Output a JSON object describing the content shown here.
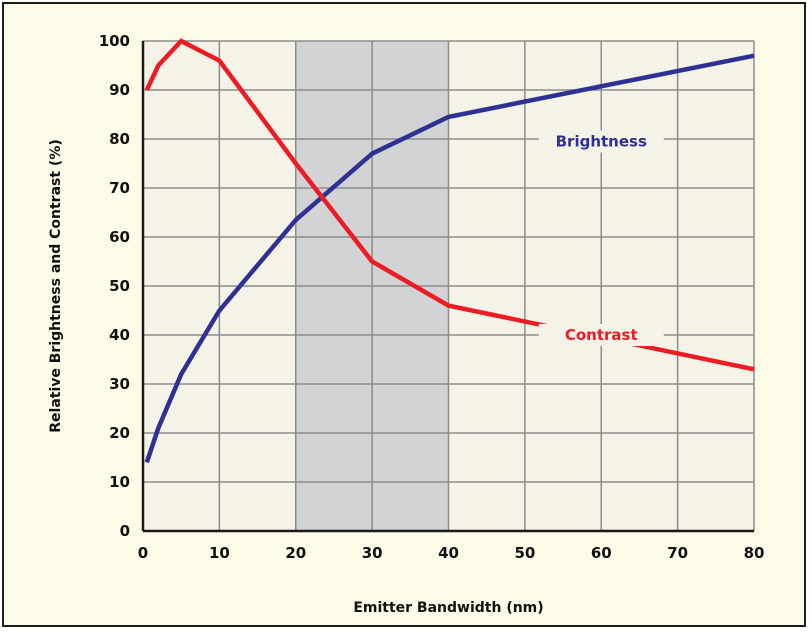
{
  "chart_data": {
    "type": "line",
    "title": "",
    "xlabel": "Emitter Bandwidth (nm)",
    "ylabel": "Relative Brightness and Contrast (%)",
    "xlim": [
      0,
      80
    ],
    "ylim": [
      0,
      100
    ],
    "x_ticks": [
      0,
      10,
      20,
      30,
      40,
      50,
      60,
      70,
      80
    ],
    "y_ticks": [
      0,
      10,
      20,
      30,
      40,
      50,
      60,
      70,
      80,
      90,
      100
    ],
    "grid": true,
    "shaded_region": {
      "x_start": 20,
      "x_end": 40
    },
    "series": [
      {
        "name": "Brightness",
        "color": "#2e3192",
        "x": [
          0.5,
          2,
          5,
          10,
          20,
          30,
          40,
          80
        ],
        "values": [
          14,
          21,
          32,
          45,
          63.5,
          77,
          84.5,
          97
        ],
        "label_position": {
          "x": 60,
          "y": 79.5
        }
      },
      {
        "name": "Contrast",
        "color": "#ed1c24",
        "x": [
          0.5,
          2,
          5,
          10,
          20,
          30,
          40,
          80
        ],
        "values": [
          90,
          95,
          100,
          96,
          75,
          55,
          46,
          33
        ],
        "label_position": {
          "x": 60,
          "y": 40
        }
      }
    ]
  }
}
